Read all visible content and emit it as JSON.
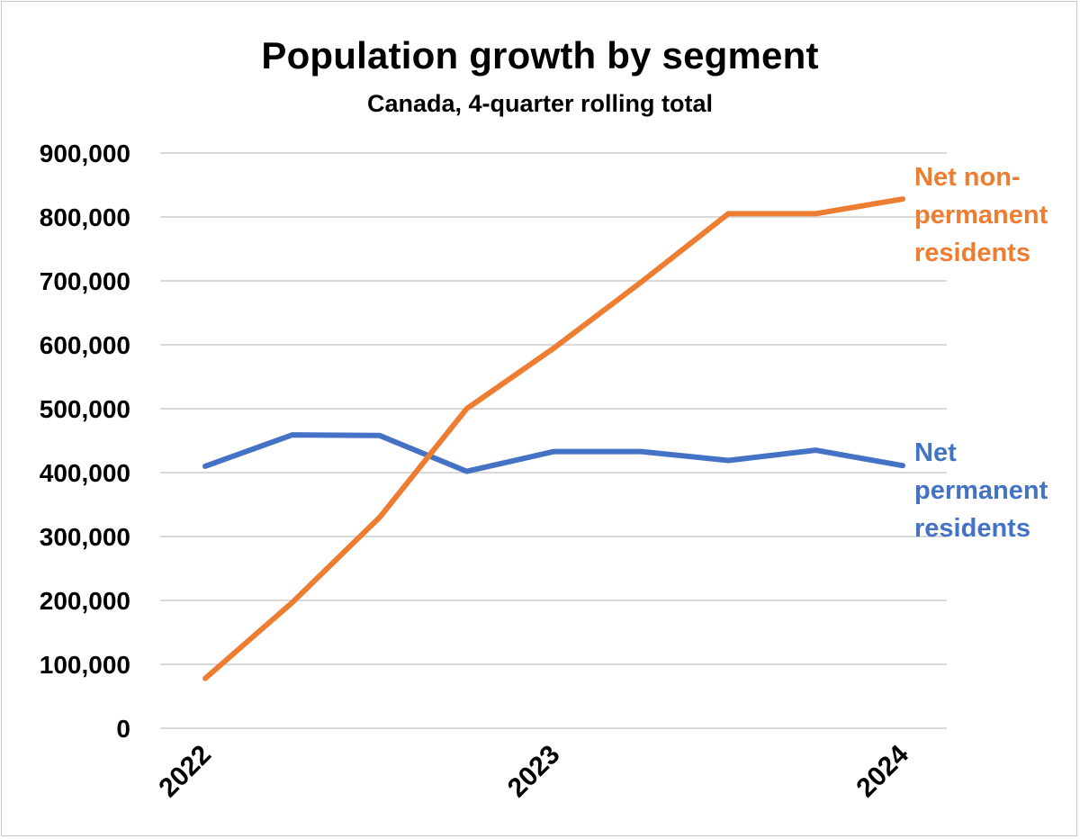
{
  "chart_data": {
    "type": "line",
    "title": "Population growth by segment",
    "subtitle": "Canada, 4-quarter rolling total",
    "xlabel": "",
    "ylabel": "",
    "ylim": [
      0,
      900000
    ],
    "yticks": [
      0,
      100000,
      200000,
      300000,
      400000,
      500000,
      600000,
      700000,
      800000,
      900000
    ],
    "ytick_labels": [
      "0",
      "100,000",
      "200,000",
      "300,000",
      "400,000",
      "500,000",
      "600,000",
      "700,000",
      "800,000",
      "900,000"
    ],
    "x": [
      0,
      1,
      2,
      3,
      4,
      5,
      6,
      7,
      8
    ],
    "xlim": [
      0,
      8
    ],
    "xtick_positions": [
      0,
      4,
      8
    ],
    "xtick_labels": [
      "2022",
      "2023",
      "2024"
    ],
    "grid": true,
    "series": [
      {
        "name": "Net non-permanent residents",
        "label_lines": [
          "Net non-",
          "permanent",
          "residents"
        ],
        "color": "#ED7D31",
        "values": [
          78000,
          197000,
          330000,
          500000,
          595000,
          698000,
          805000,
          805000,
          828000
        ]
      },
      {
        "name": "Net permanent residents",
        "label_lines": [
          "Net",
          "permanent",
          "residents"
        ],
        "color": "#4472C4",
        "values": [
          410000,
          459000,
          458000,
          402000,
          433000,
          433000,
          419000,
          435000,
          411000
        ]
      }
    ]
  }
}
